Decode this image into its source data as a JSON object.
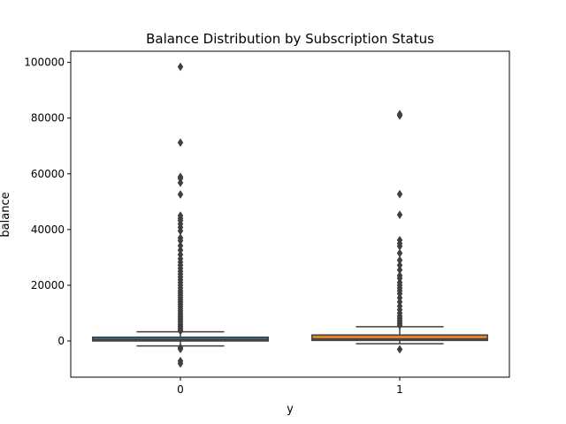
{
  "chart_data": {
    "type": "box",
    "title": "Balance Distribution by Subscription Status",
    "xlabel": "y",
    "ylabel": "balance",
    "categories": [
      "0",
      "1"
    ],
    "ylim": [
      -13000,
      104000
    ],
    "yticks": [
      0,
      20000,
      40000,
      60000,
      80000,
      100000
    ],
    "ytick_labels": [
      "0",
      "20000",
      "40000",
      "60000",
      "80000",
      "100000"
    ],
    "grid": false,
    "legend": "none",
    "series": [
      {
        "category": "0",
        "color": "#3b6e8f",
        "whislo": -1800,
        "q1": 0,
        "median": 420,
        "q3": 1350,
        "whishi": 3300,
        "fliers": [
          98400,
          71200,
          58900,
          58300,
          56800,
          52600,
          45000,
          44000,
          43200,
          42000,
          40800,
          39500,
          37000,
          36000,
          34200,
          32600,
          31000,
          29500,
          28300,
          27200,
          26100,
          25000,
          24000,
          23000,
          22000,
          21000,
          20000,
          19000,
          18000,
          17200,
          16400,
          15600,
          14800,
          14000,
          13200,
          12400,
          11600,
          10800,
          10000,
          9300,
          8600,
          7900,
          7200,
          6500,
          5800,
          5200,
          4600,
          4000,
          3600,
          -2400,
          -2900,
          -7200,
          -8100
        ]
      },
      {
        "category": "1",
        "color": "#e0822a",
        "whislo": -1000,
        "q1": 200,
        "median": 730,
        "q3": 2150,
        "whishi": 5100,
        "fliers": [
          81400,
          80900,
          52700,
          45300,
          36200,
          35000,
          34000,
          31500,
          29000,
          27200,
          25500,
          23500,
          22500,
          21000,
          20000,
          19000,
          18000,
          17000,
          15500,
          14000,
          12500,
          11200,
          10000,
          9000,
          8200,
          7500,
          6800,
          6200,
          5600,
          -3000
        ]
      }
    ]
  }
}
